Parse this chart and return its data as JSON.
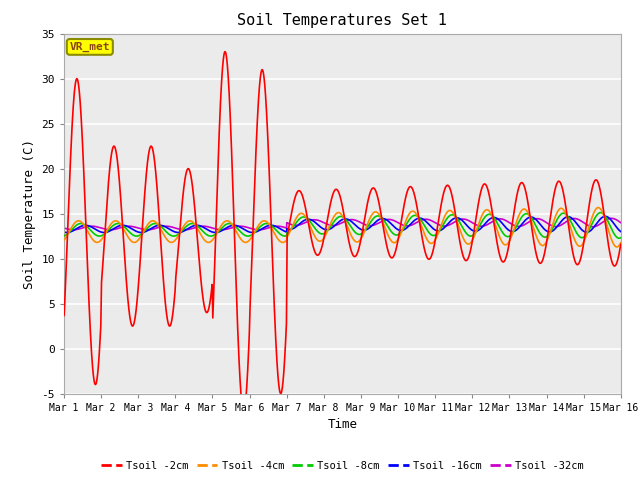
{
  "title": "Soil Temperatures Set 1",
  "xlabel": "Time",
  "ylabel": "Soil Temperature (C)",
  "ylim": [
    -5,
    35
  ],
  "xlim": [
    0,
    15
  ],
  "xtick_labels": [
    "Mar 1",
    "Mar 2",
    "Mar 3",
    "Mar 4",
    "Mar 5",
    "Mar 6",
    "Mar 7",
    "Mar 8",
    "Mar 9",
    "Mar 10",
    "Mar 11",
    "Mar 12",
    "Mar 13",
    "Mar 14",
    "Mar 15",
    "Mar 16"
  ],
  "xtick_positions": [
    0,
    1,
    2,
    3,
    4,
    5,
    6,
    7,
    8,
    9,
    10,
    11,
    12,
    13,
    14,
    15
  ],
  "ytick_positions": [
    -5,
    0,
    5,
    10,
    15,
    20,
    25,
    30,
    35
  ],
  "colors": {
    "Tsoil_2cm": "#ff0000",
    "Tsoil_4cm": "#ff8c00",
    "Tsoil_8cm": "#00cc00",
    "Tsoil_16cm": "#0000ff",
    "Tsoil_32cm": "#cc00cc"
  },
  "legend_labels": [
    "Tsoil -2cm",
    "Tsoil -4cm",
    "Tsoil -8cm",
    "Tsoil -16cm",
    "Tsoil -32cm"
  ],
  "annotation_text": "VR_met",
  "annotation_box_color": "#ffff00",
  "annotation_box_edge": "#8b8b00",
  "plot_bg_color": "#ebebeb",
  "grid_color": "#ffffff"
}
